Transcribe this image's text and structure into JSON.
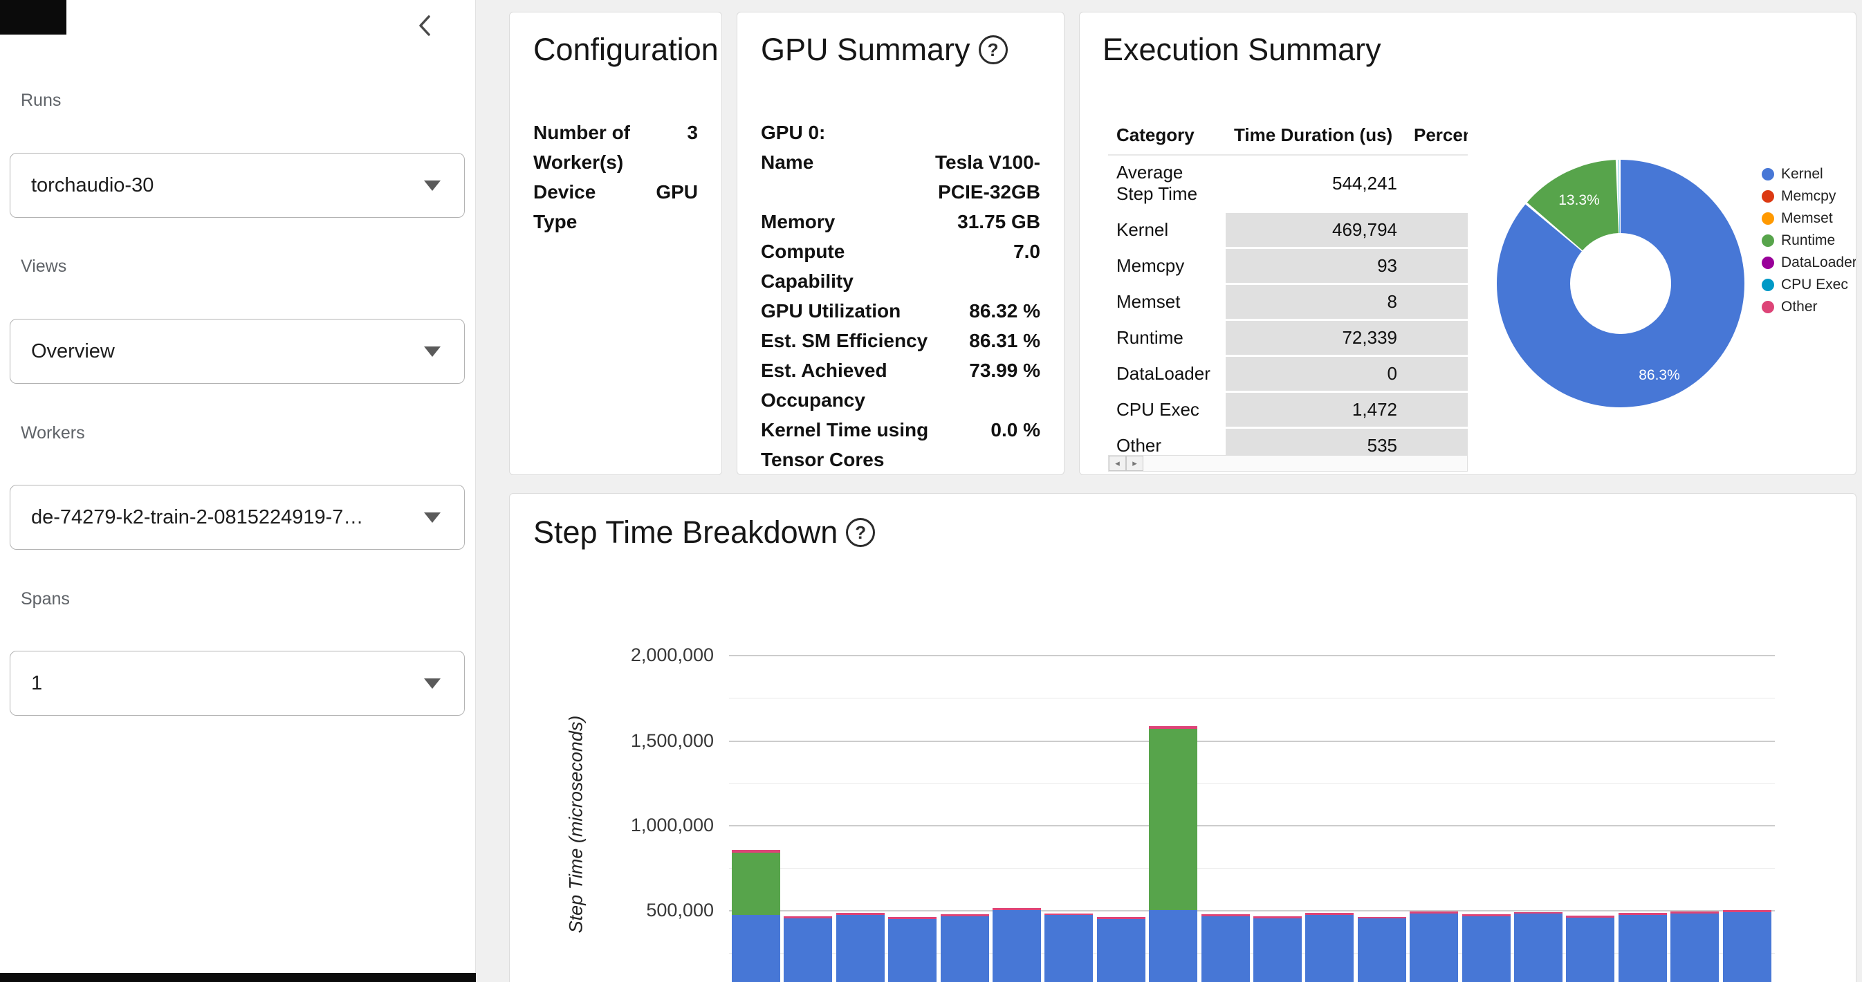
{
  "icons": {
    "help": "?",
    "scroll_left": "◂",
    "scroll_right": "▸"
  },
  "sidebar": {
    "fields": [
      {
        "label": "Runs",
        "value": "torchaudio-30"
      },
      {
        "label": "Views",
        "value": "Overview"
      },
      {
        "label": "Workers",
        "value": "de-74279-k2-train-2-0815224919-7…"
      },
      {
        "label": "Spans",
        "value": "1"
      }
    ]
  },
  "config_card": {
    "title": "Configuration",
    "rows": [
      {
        "label": "Number of Worker(s)",
        "value": "3"
      },
      {
        "label": "Device Type",
        "value": "GPU"
      }
    ]
  },
  "gpu_card": {
    "title": "GPU Summary",
    "section": "GPU 0:",
    "rows": [
      {
        "label": "Name",
        "value": "Tesla V100-PCIE-32GB"
      },
      {
        "label": "Memory",
        "value": "31.75 GB"
      },
      {
        "label": "Compute Capability",
        "value": "7.0"
      },
      {
        "label": "GPU Utilization",
        "value": "86.32 %"
      },
      {
        "label": "Est. SM Efficiency",
        "value": "86.31 %"
      },
      {
        "label": "Est. Achieved Occupancy",
        "value": "73.99 %"
      },
      {
        "label": "Kernel Time using Tensor Cores",
        "value": "0.0 %"
      }
    ]
  },
  "exec_card": {
    "title": "Execution Summary",
    "headers": {
      "category": "Category",
      "duration": "Time Duration (us)",
      "percentage": "Percentage"
    },
    "rows": [
      {
        "category": "Average Step Time",
        "duration": "544,241"
      },
      {
        "category": "Kernel",
        "duration": "469,794"
      },
      {
        "category": "Memcpy",
        "duration": "93"
      },
      {
        "category": "Memset",
        "duration": "8"
      },
      {
        "category": "Runtime",
        "duration": "72,339"
      },
      {
        "category": "DataLoader",
        "duration": "0"
      },
      {
        "category": "CPU Exec",
        "duration": "1,472"
      },
      {
        "category": "Other",
        "duration": "535"
      }
    ]
  },
  "step_card": {
    "title": "Step Time Breakdown"
  },
  "chart_data": [
    {
      "type": "pie",
      "donut": true,
      "title": "Execution Summary",
      "legend_position": "right",
      "labels": [
        "Kernel",
        "Memcpy",
        "Memset",
        "Runtime",
        "DataLoader",
        "CPU Exec",
        "Other"
      ],
      "values_us": [
        469794,
        93,
        8,
        72339,
        0,
        1472,
        535
      ],
      "percent_labels_shown": [
        "86.3%",
        "13.3%"
      ],
      "colors": [
        "#4777d6",
        "#dc3912",
        "#ff9900",
        "#57a44b",
        "#990099",
        "#0099c6",
        "#dd4477"
      ]
    },
    {
      "type": "bar",
      "stacked": true,
      "title": "Step Time Breakdown",
      "ylabel": "Step Time (microseconds)",
      "ylim": [
        0,
        2100000
      ],
      "grid": true,
      "yticks": [
        500000,
        1000000,
        1500000,
        2000000
      ],
      "ytick_labels": [
        "500,000",
        "1,000,000",
        "1,500,000",
        "2,000,000"
      ],
      "series": [
        {
          "name": "Kernel",
          "color": "#4777d6",
          "values": [
            470000,
            452000,
            470000,
            448000,
            462000,
            500000,
            470000,
            448000,
            498000,
            462000,
            452000,
            470000,
            450000,
            480000,
            465000,
            478000,
            455000,
            470000,
            478000,
            488000
          ]
        },
        {
          "name": "Runtime",
          "color": "#57a44b",
          "values": [
            368000,
            0,
            0,
            0,
            0,
            0,
            0,
            0,
            1068000,
            0,
            0,
            0,
            0,
            0,
            0,
            0,
            0,
            0,
            0,
            0
          ]
        },
        {
          "name": "Other",
          "color": "#dd4477",
          "values": [
            14000,
            12000,
            12000,
            12000,
            12000,
            14000,
            10000,
            12000,
            14000,
            12000,
            12000,
            12000,
            10000,
            12000,
            12000,
            10000,
            12000,
            12000,
            12000,
            12000
          ]
        }
      ]
    }
  ]
}
